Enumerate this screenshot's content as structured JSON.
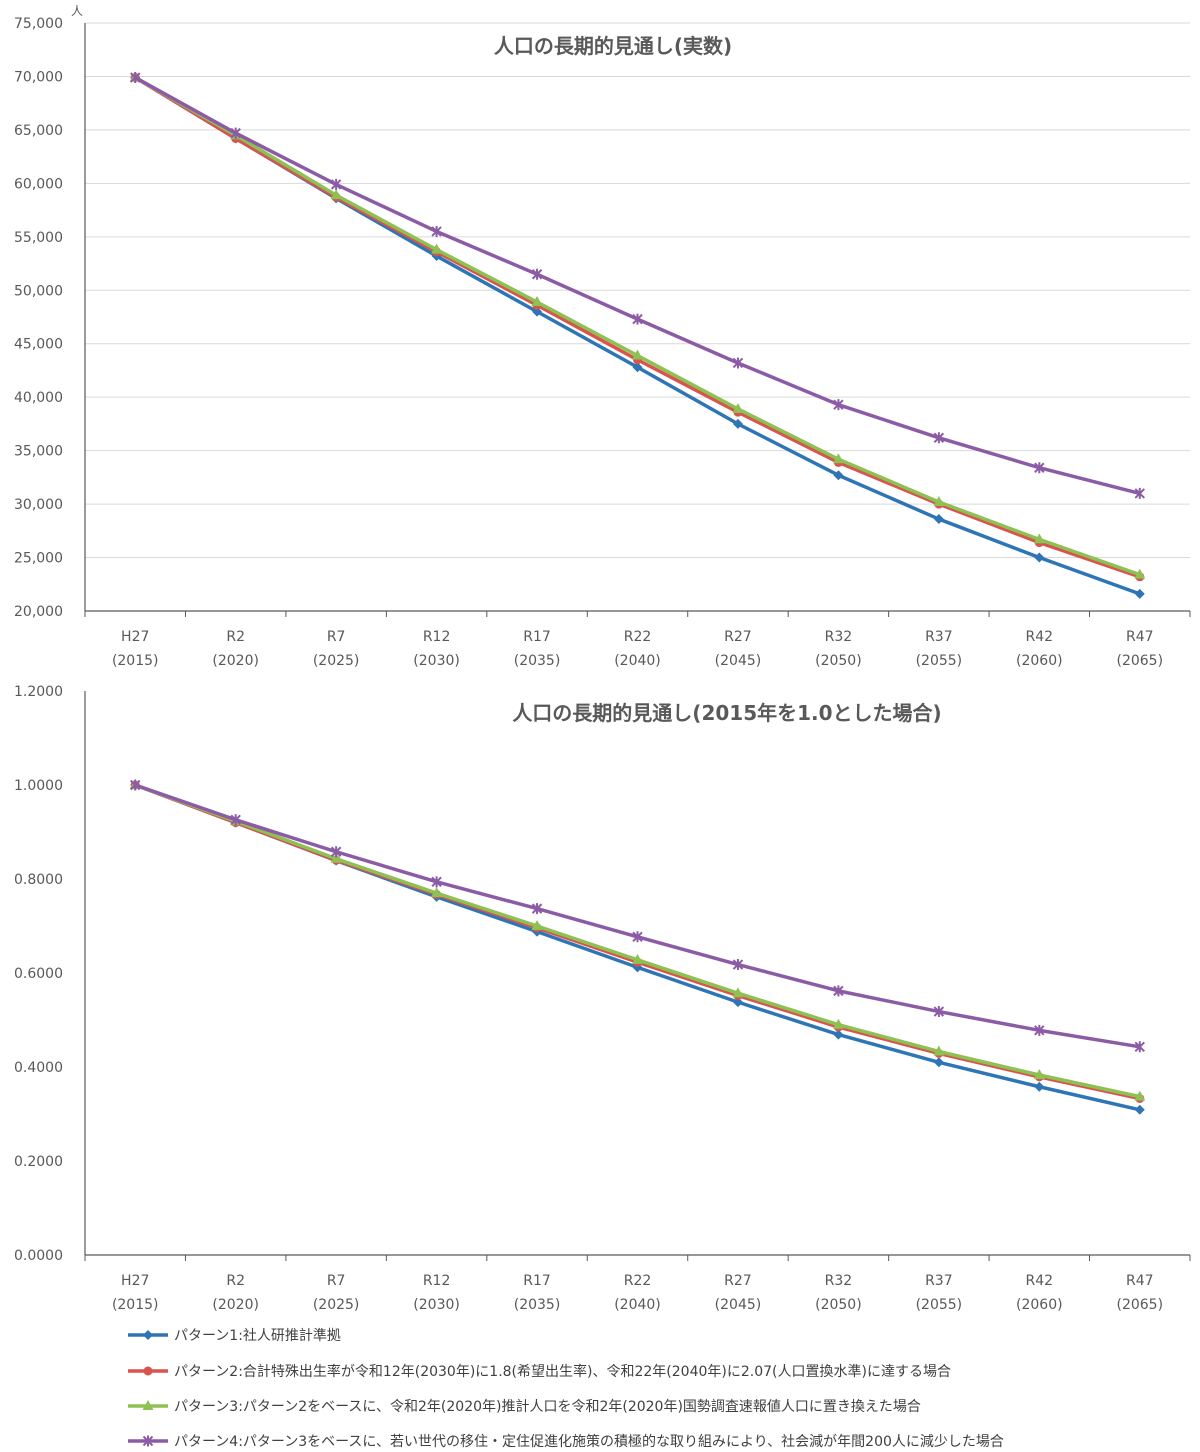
{
  "colors": {
    "series": [
      "#2E75B6",
      "#D9534F",
      "#8DC152",
      "#8B5CA5"
    ],
    "grid": "#D9D9D9",
    "axis": "#595959"
  },
  "chart_data": [
    {
      "type": "line",
      "title": "人口の長期的見通し(実数)",
      "ylabel": "人",
      "ylim": [
        20000,
        75000
      ],
      "yticks": [
        "20,000",
        "25,000",
        "30,000",
        "35,000",
        "40,000",
        "45,000",
        "50,000",
        "55,000",
        "60,000",
        "65,000",
        "70,000",
        "75,000"
      ],
      "ytick_values": [
        20000,
        25000,
        30000,
        35000,
        40000,
        45000,
        50000,
        55000,
        60000,
        65000,
        70000,
        75000
      ],
      "categories": [
        "H27|(2015)",
        "R2|(2020)",
        "R7|(2025)",
        "R12|(2030)",
        "R17|(2035)",
        "R22|(2040)",
        "R27|(2045)",
        "R32|(2050)",
        "R37|(2055)",
        "R42|(2060)",
        "R47|(2065)"
      ],
      "grid": true,
      "series": [
        {
          "values": [
            69900,
            64200,
            58600,
            53200,
            48000,
            42800,
            37500,
            32700,
            28600,
            25000,
            21600
          ]
        },
        {
          "values": [
            69900,
            64200,
            58700,
            53600,
            48600,
            43500,
            38600,
            33900,
            30000,
            26400,
            23200
          ]
        },
        {
          "values": [
            69900,
            64500,
            58900,
            53800,
            48900,
            43900,
            38900,
            34200,
            30200,
            26700,
            23400
          ]
        },
        {
          "values": [
            69900,
            64700,
            59900,
            55500,
            51500,
            47300,
            43200,
            39300,
            36200,
            33400,
            31000
          ]
        }
      ]
    },
    {
      "type": "line",
      "title": "人口の長期的見通し(2015年を1.0とした場合)",
      "ylim": [
        0,
        1.2
      ],
      "yticks": [
        "0.0000",
        "0.2000",
        "0.4000",
        "0.6000",
        "0.8000",
        "1.0000",
        "1.2000"
      ],
      "ytick_values": [
        0,
        0.2,
        0.4,
        0.6,
        0.8,
        1.0,
        1.2
      ],
      "categories": [
        "H27|(2015)",
        "R2|(2020)",
        "R7|(2025)",
        "R12|(2030)",
        "R17|(2035)",
        "R22|(2040)",
        "R27|(2045)",
        "R32|(2050)",
        "R37|(2055)",
        "R42|(2060)",
        "R47|(2065)"
      ],
      "grid": false,
      "series": [
        {
          "values": [
            1.0,
            0.92,
            0.839,
            0.762,
            0.688,
            0.612,
            0.538,
            0.469,
            0.41,
            0.358,
            0.309
          ]
        },
        {
          "values": [
            1.0,
            0.92,
            0.84,
            0.767,
            0.696,
            0.623,
            0.552,
            0.485,
            0.429,
            0.379,
            0.333
          ]
        },
        {
          "values": [
            1.0,
            0.923,
            0.843,
            0.77,
            0.7,
            0.628,
            0.557,
            0.49,
            0.433,
            0.383,
            0.337
          ]
        },
        {
          "values": [
            1.0,
            0.926,
            0.858,
            0.794,
            0.737,
            0.677,
            0.618,
            0.562,
            0.518,
            0.478,
            0.443
          ]
        }
      ]
    }
  ],
  "legend": [
    "パターン1:社人研推計準拠",
    "パターン2:合計特殊出生率が令和12年(2030年)に1.8(希望出生率)、令和22年(2040年)に2.07(人口置換水準)に達する場合",
    "パターン3:パターン2をベースに、令和2年(2020年)推計人口を令和2年(2020年)国勢調査速報値人口に置き換えた場合",
    "パターン4:パターン3をベースに、若い世代の移住・定住促進化施策の積極的な取り組みにより、社会減が年間200人に減少した場合"
  ]
}
